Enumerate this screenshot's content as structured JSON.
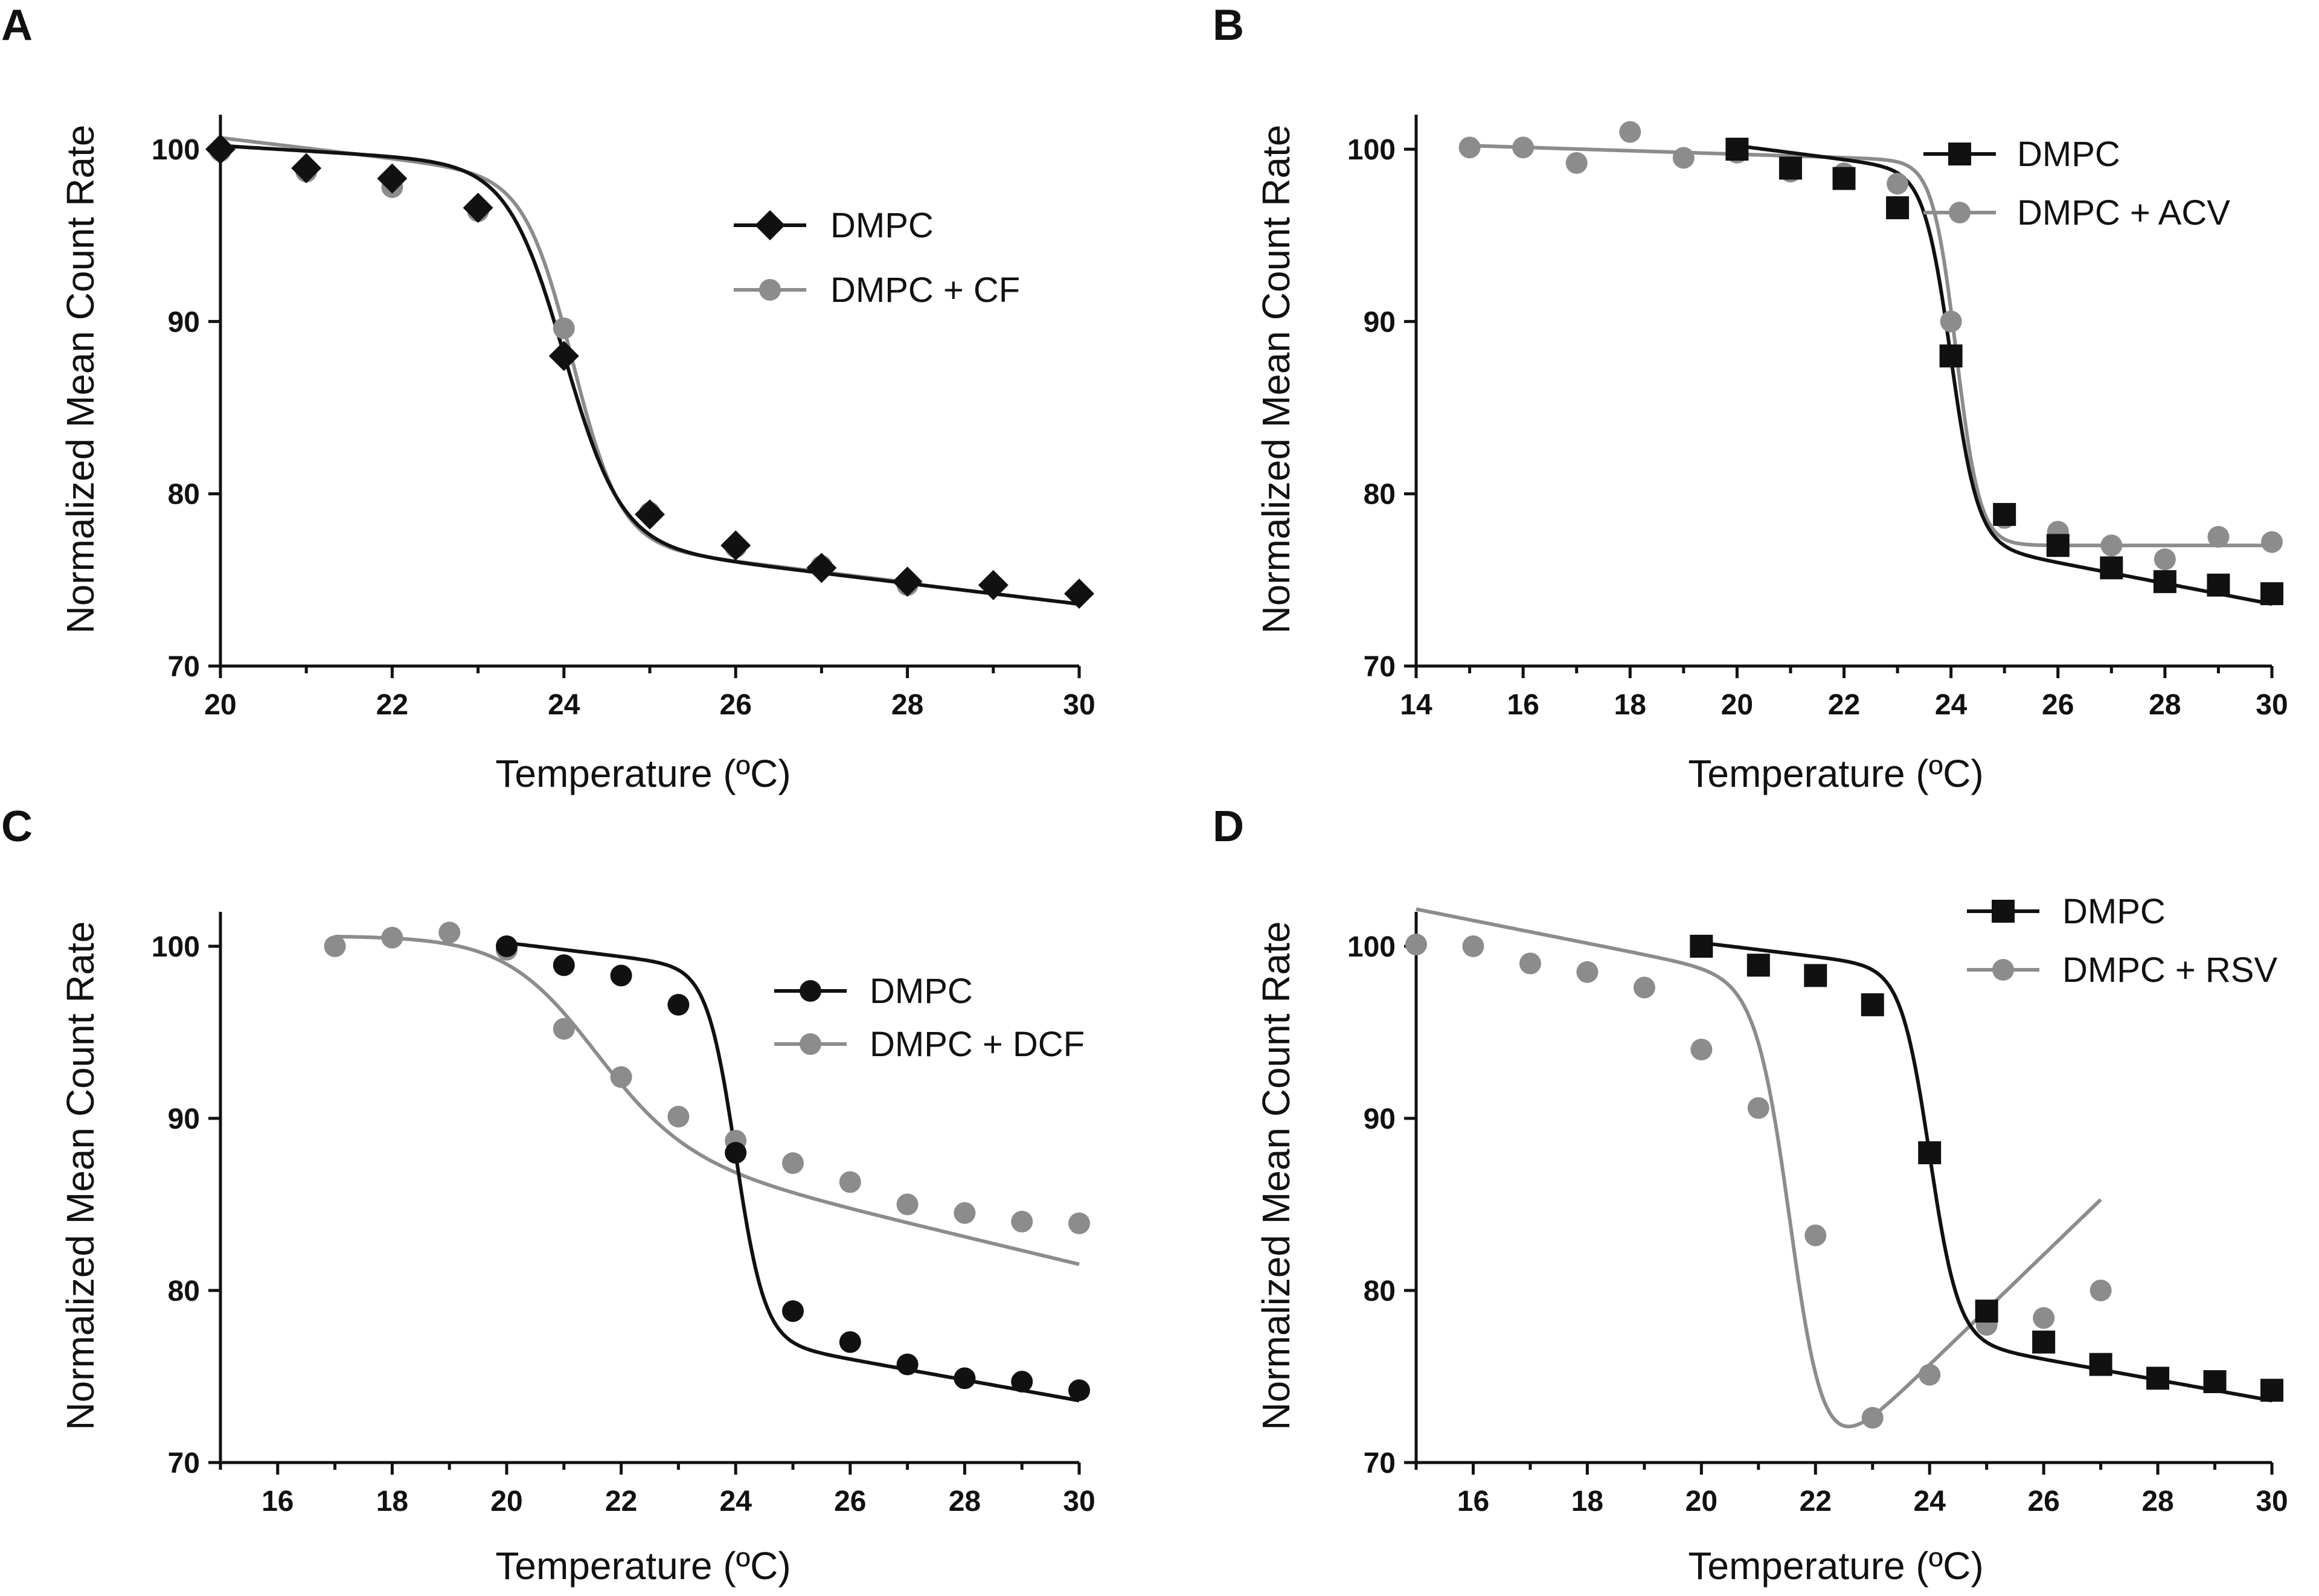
{
  "chart_data": [
    {
      "panel": "A",
      "type": "line",
      "xlabel": "Temperature (ºC)",
      "ylabel": "Normalized Mean Count Rate",
      "xlim": [
        20,
        30
      ],
      "ylim": [
        70,
        102
      ],
      "xticks": [
        20,
        22,
        24,
        26,
        28,
        30
      ],
      "yticks": [
        70,
        80,
        90,
        100
      ],
      "legend_position": "top-right",
      "series": [
        {
          "name": "DMPC",
          "marker": "diamond",
          "color": "#111111",
          "x": [
            20,
            21,
            22,
            23,
            24,
            25,
            26,
            27,
            28,
            29,
            30
          ],
          "y": [
            100,
            98.9,
            98.3,
            96.6,
            88.0,
            78.8,
            77.0,
            75.7,
            74.9,
            74.7,
            74.2
          ],
          "fit": {
            "top": 99.0,
            "bottom": 77.2,
            "tm": 24.0,
            "width": 0.33,
            "ptop": 0.3,
            "pbottom": 0.6,
            "start": 20,
            "end": 30
          }
        },
        {
          "name": "DMPC + CF",
          "marker": "circle",
          "color": "#8c8c8c",
          "x": [
            20,
            21,
            22,
            23,
            24,
            25,
            26,
            27,
            28
          ],
          "y": [
            99.9,
            98.7,
            97.8,
            96.4,
            89.6,
            78.9,
            76.9,
            75.8,
            74.7
          ],
          "fit": {
            "top": 98.2,
            "bottom": 77.2,
            "tm": 24.1,
            "width": 0.28,
            "ptop": 0.6,
            "pbottom": 0.6,
            "start": 20,
            "end": 28
          }
        }
      ]
    },
    {
      "panel": "B",
      "type": "line",
      "xlabel": "Temperature (ºC)",
      "ylabel": "Normalized Mean Count Rate",
      "xlim": [
        14,
        30
      ],
      "ylim": [
        70,
        102
      ],
      "xticks": [
        14,
        16,
        18,
        20,
        22,
        24,
        26,
        28,
        30
      ],
      "yticks": [
        70,
        80,
        90,
        100
      ],
      "legend_position": "top-right",
      "series": [
        {
          "name": "DMPC",
          "marker": "square",
          "color": "#111111",
          "x": [
            20,
            21,
            22,
            23,
            24,
            25,
            26,
            27,
            28,
            29,
            30
          ],
          "y": [
            100,
            98.9,
            98.3,
            96.6,
            88.0,
            78.8,
            77.0,
            75.7,
            74.9,
            74.7,
            74.2
          ],
          "fit": {
            "top": 98.6,
            "bottom": 77.2,
            "tm": 24.0,
            "width": 0.25,
            "ptop": 0.4,
            "pbottom": 0.6,
            "start": 20,
            "end": 30
          }
        },
        {
          "name": "DMPC + ACV",
          "marker": "circle",
          "color": "#8c8c8c",
          "x": [
            15,
            16,
            17,
            18,
            19,
            20,
            21,
            22,
            23,
            24,
            25,
            26,
            27,
            28,
            29,
            30
          ],
          "y": [
            100.1,
            100.1,
            99.2,
            101.0,
            99.5,
            99.8,
            98.7,
            98.6,
            98.0,
            90.0,
            78.6,
            77.8,
            77.0,
            76.2,
            77.5,
            77.2
          ],
          "fit": {
            "top": 99.3,
            "bottom": 77.0,
            "tm": 24.1,
            "width": 0.22,
            "ptop": 0.1,
            "pbottom": 0.0,
            "start": 15,
            "end": 30
          }
        }
      ]
    },
    {
      "panel": "C",
      "type": "line",
      "xlabel": "Temperature (ºC)",
      "ylabel": "Normalized Mean Count Rate",
      "xlim": [
        15,
        30
      ],
      "ylim": [
        70,
        102
      ],
      "xticks": [
        16,
        18,
        20,
        22,
        24,
        26,
        28,
        30
      ],
      "yticks": [
        70,
        80,
        90,
        100
      ],
      "legend_position": "center-right",
      "series": [
        {
          "name": "DMPC",
          "marker": "circle",
          "color": "#111111",
          "x": [
            20,
            21,
            22,
            23,
            24,
            25,
            26,
            27,
            28,
            29,
            30
          ],
          "y": [
            100,
            98.9,
            98.3,
            96.6,
            88.0,
            78.8,
            77.0,
            75.7,
            74.9,
            74.7,
            74.2
          ],
          "fit": {
            "top": 98.6,
            "bottom": 77.2,
            "tm": 24.0,
            "width": 0.25,
            "ptop": 0.4,
            "pbottom": 0.6,
            "start": 20,
            "end": 30
          }
        },
        {
          "name": "DMPC + DCF",
          "marker": "circle",
          "color": "#8c8c8c",
          "x": [
            17,
            18,
            19,
            20,
            21,
            22,
            23,
            24,
            25,
            26,
            27,
            28,
            29,
            30
          ],
          "y": [
            100.0,
            100.5,
            100.8,
            99.8,
            95.2,
            92.4,
            90.1,
            88.7,
            87.4,
            86.3,
            85.0,
            84.5,
            84.0,
            83.9
          ],
          "fit": {
            "top": 100.6,
            "bottom": 88.4,
            "tm": 21.4,
            "width": 0.8,
            "ptop": 0.0,
            "pbottom": 0.8,
            "start": 17,
            "end": 30
          }
        }
      ]
    },
    {
      "panel": "D",
      "type": "line",
      "xlabel": "Temperature (ºC)",
      "ylabel": "Normalized Mean Count Rate",
      "xlim": [
        15,
        30
      ],
      "ylim": [
        70,
        102
      ],
      "xticks": [
        16,
        18,
        20,
        22,
        24,
        26,
        28,
        30
      ],
      "yticks": [
        70,
        80,
        90,
        100
      ],
      "legend_position": "top-right",
      "series": [
        {
          "name": "DMPC",
          "marker": "square",
          "color": "#111111",
          "x": [
            20,
            21,
            22,
            23,
            24,
            25,
            26,
            27,
            28,
            29,
            30
          ],
          "y": [
            100,
            98.9,
            98.3,
            96.6,
            88.0,
            78.8,
            77.0,
            75.7,
            74.9,
            74.7,
            74.2
          ],
          "fit": {
            "top": 98.6,
            "bottom": 77.2,
            "tm": 24.0,
            "width": 0.25,
            "ptop": 0.4,
            "pbottom": 0.6,
            "start": 20,
            "end": 30
          }
        },
        {
          "name": "DMPC + RSV",
          "marker": "circle",
          "color": "#8c8c8c",
          "x": [
            15,
            16,
            17,
            18,
            19,
            20,
            21,
            22,
            23,
            24,
            25,
            26,
            27
          ],
          "y": [
            100.1,
            100.0,
            99.0,
            98.5,
            97.6,
            94.0,
            90.6,
            83.2,
            72.6,
            75.1,
            78.0,
            78.4,
            80.0
          ],
          "fit": {
            "top": 97.8,
            "bottom": 68.0,
            "tm": 21.6,
            "width": 0.3,
            "ptop": 0.66,
            "pbottom": -3.2,
            "start": 15,
            "end": 27
          }
        }
      ]
    }
  ]
}
